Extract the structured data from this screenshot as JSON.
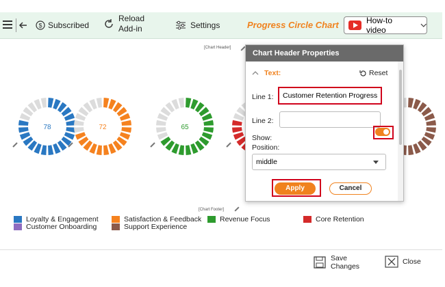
{
  "toolbar": {
    "subscribed_label": "Subscribed",
    "reload_label_1": "Reload",
    "reload_label_2": "Add-in",
    "settings_label": "Settings",
    "title": "Progress Circle Chart",
    "howto_label": "How-to video"
  },
  "chart": {
    "header_placeholder": "[Chart Header]",
    "footer_placeholder": "[Chart Footer]",
    "donuts": [
      {
        "value": "78",
        "color": "#2a78c2"
      },
      {
        "value": "72",
        "color": "#f5821f"
      },
      {
        "value": "65",
        "color": "#2e9b2e"
      },
      {
        "value": "",
        "color": "#d42a2a"
      },
      {
        "value": "",
        "color": "#8b5a4a"
      }
    ],
    "legend": [
      {
        "label": "Loyalty & Engagement",
        "color": "#2a78c2"
      },
      {
        "label": "Satisfaction & Feedback",
        "color": "#f5821f"
      },
      {
        "label": "Revenue Focus",
        "color": "#2e9b2e"
      },
      {
        "label": "Core Retention",
        "color": "#d42a2a"
      },
      {
        "label": "Customer Onboarding",
        "color": "#8e6cc0"
      },
      {
        "label": "Support Experience",
        "color": "#8b5a4a"
      }
    ]
  },
  "panel": {
    "title": "Chart Header Properties",
    "section_label": "Text:",
    "reset_label": "Reset",
    "line1_label": "Line 1:",
    "line1_value": "Customer Retention Progress",
    "line2_label": "Line 2:",
    "line2_value": "",
    "show_label": "Show:",
    "position_label": "Position:",
    "position_value": "middle",
    "apply_label": "Apply",
    "cancel_label": "Cancel"
  },
  "bottom": {
    "save_label_1": "Save",
    "save_label_2": "Changes",
    "close_label": "Close"
  }
}
